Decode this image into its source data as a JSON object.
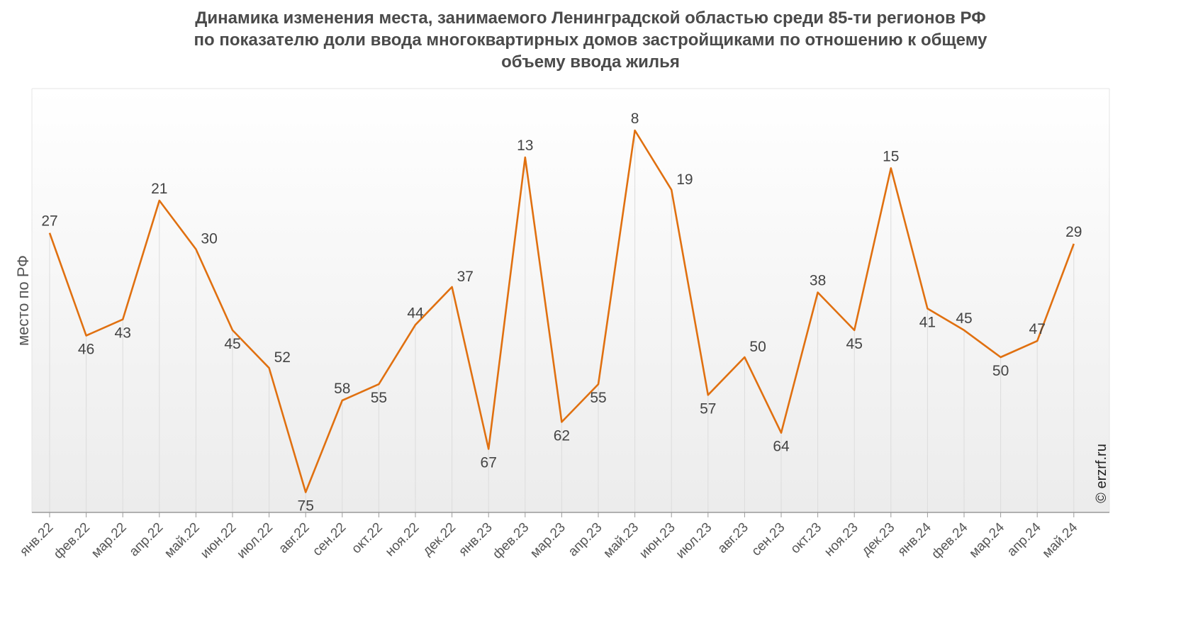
{
  "chart_data": {
    "type": "line",
    "title_lines": [
      "Динамика изменения места, занимаемого Ленинградской областью среди 85-ти регионов РФ",
      "по показателю доли ввода многоквартирных домов застройщиками по отношению к общему",
      "объему ввода жилья"
    ],
    "ylabel": "место по РФ",
    "y_inverted": true,
    "ylim": [
      85,
      1
    ],
    "grid": "vertical",
    "categories": [
      "янв.22",
      "фев.22",
      "мар.22",
      "апр.22",
      "май.22",
      "июн.22",
      "июл.22",
      "авг.22",
      "сен.22",
      "окт.22",
      "ноя.22",
      "дек.22",
      "янв.23",
      "фев.23",
      "мар.23",
      "апр.23",
      "май.23",
      "июн.23",
      "июл.23",
      "авг.23",
      "сен.23",
      "окт.23",
      "ноя.23",
      "дек.23",
      "янв.24",
      "фев.24",
      "мар.24",
      "апр.24",
      "май.24"
    ],
    "series": [
      {
        "color": "#e07010",
        "values": [
          27,
          46,
          43,
          21,
          30,
          45,
          52,
          75,
          58,
          55,
          44,
          37,
          67,
          13,
          62,
          55,
          8,
          19,
          57,
          50,
          64,
          38,
          45,
          15,
          41,
          45,
          50,
          47,
          29
        ]
      }
    ],
    "label_positions": [
      "above",
      "below",
      "below",
      "above",
      "right",
      "below",
      "right",
      "below",
      "above",
      "below",
      "above",
      "right",
      "below",
      "above",
      "below",
      "below",
      "above",
      "right",
      "below",
      "right",
      "below",
      "above",
      "below",
      "above",
      "below",
      "above",
      "below",
      "above",
      "above"
    ],
    "credit": "© erzrf.ru"
  }
}
